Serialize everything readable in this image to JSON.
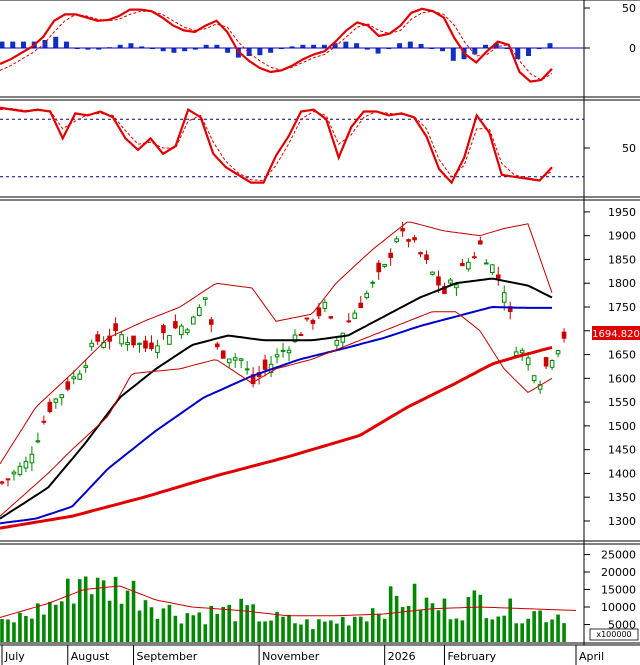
{
  "chart_data": [
    {
      "type": "line",
      "panel": "macd",
      "ylim": [
        -60,
        60
      ],
      "y_ticks": [
        "50",
        "0"
      ],
      "y_tick_values": [
        50,
        0
      ],
      "series": [
        {
          "role": "macd-line",
          "color": "#e00000",
          "values": [
            -20,
            -14,
            -6,
            2,
            14,
            34,
            42,
            42,
            38,
            34,
            35,
            40,
            48,
            48,
            46,
            38,
            28,
            22,
            20,
            28,
            34,
            20,
            -4,
            -16,
            -25,
            -30,
            -28,
            -22,
            -14,
            -8,
            -4,
            8,
            22,
            32,
            28,
            15,
            18,
            28,
            44,
            49,
            46,
            38,
            12,
            -8,
            -18,
            -4,
            8,
            4,
            -30,
            -42,
            -40,
            -26
          ]
        },
        {
          "role": "signal-line",
          "color": "#e00000",
          "values": [
            -28,
            -22,
            -14,
            -6,
            4,
            20,
            34,
            42,
            40,
            36,
            34,
            36,
            42,
            46,
            46,
            42,
            34,
            26,
            22,
            24,
            30,
            26,
            8,
            -6,
            -16,
            -24,
            -28,
            -24,
            -18,
            -12,
            -8,
            2,
            14,
            26,
            30,
            22,
            18,
            22,
            36,
            44,
            46,
            42,
            28,
            6,
            -10,
            -8,
            2,
            4,
            -16,
            -32,
            -40,
            -32
          ]
        },
        {
          "role": "histogram",
          "color": "#1030c0",
          "values": [
            8,
            8,
            8,
            8,
            10,
            14,
            8,
            0,
            -2,
            -2,
            1,
            4,
            6,
            2,
            0,
            -4,
            -6,
            -4,
            -2,
            4,
            4,
            -6,
            -12,
            -10,
            -9,
            -6,
            0,
            2,
            4,
            4,
            4,
            6,
            8,
            6,
            -2,
            -7,
            0,
            6,
            8,
            5,
            0,
            -4,
            -16,
            -14,
            -8,
            4,
            6,
            0,
            -14,
            -10,
            0,
            6
          ]
        }
      ]
    },
    {
      "type": "line",
      "panel": "stochastic",
      "ylim": [
        0,
        100
      ],
      "y_ticks": [
        "50"
      ],
      "y_tick_values": [
        50
      ],
      "reference_levels": [
        80,
        20
      ],
      "series": [
        {
          "role": "%K",
          "color": "#e00000",
          "values": [
            92,
            90,
            88,
            90,
            88,
            60,
            86,
            84,
            88,
            82,
            60,
            48,
            60,
            44,
            52,
            90,
            82,
            44,
            30,
            22,
            14,
            14,
            42,
            62,
            88,
            90,
            80,
            40,
            72,
            88,
            88,
            84,
            86,
            82,
            62,
            28,
            14,
            40,
            84,
            66,
            22,
            20,
            18,
            16,
            30
          ]
        },
        {
          "role": "%D",
          "color": "#e00000",
          "values": [
            90,
            91,
            89,
            89,
            89,
            70,
            78,
            85,
            86,
            84,
            68,
            54,
            56,
            50,
            50,
            78,
            84,
            56,
            36,
            24,
            17,
            16,
            32,
            54,
            80,
            88,
            84,
            54,
            64,
            82,
            88,
            86,
            85,
            83,
            70,
            38,
            20,
            32,
            70,
            70,
            34,
            22,
            19,
            17,
            26
          ]
        }
      ]
    },
    {
      "type": "line",
      "panel": "price",
      "ylim": [
        1260,
        1975
      ],
      "y_ticks": [
        "1950",
        "1900",
        "1850",
        "1800",
        "1750",
        "1700",
        "1650",
        "1600",
        "1550",
        "1500",
        "1450",
        "1400",
        "1350",
        "1300"
      ],
      "y_tick_values": [
        1950,
        1900,
        1850,
        1800,
        1750,
        1700,
        1650,
        1600,
        1550,
        1500,
        1450,
        1400,
        1350,
        1300
      ],
      "last_price": "1694.820",
      "x_labels": [
        "July",
        "August",
        "September",
        "November",
        "2026",
        "February",
        "April"
      ],
      "x_label_positions": [
        0,
        11,
        22,
        43,
        64,
        74,
        96
      ],
      "n_bars": 96,
      "overlays": [
        {
          "role": "ma-black",
          "color": "#000000",
          "anchors": [
            [
              0,
              1305
            ],
            [
              8,
              1370
            ],
            [
              14,
              1460
            ],
            [
              20,
              1560
            ],
            [
              26,
              1620
            ],
            [
              32,
              1670
            ],
            [
              38,
              1690
            ],
            [
              44,
              1680
            ],
            [
              52,
              1680
            ],
            [
              58,
              1690
            ],
            [
              64,
              1730
            ],
            [
              70,
              1770
            ],
            [
              76,
              1800
            ],
            [
              82,
              1810
            ],
            [
              88,
              1795
            ],
            [
              92,
              1770
            ]
          ]
        },
        {
          "role": "ma-blue",
          "color": "#0000cc",
          "anchors": [
            [
              0,
              1295
            ],
            [
              6,
              1305
            ],
            [
              12,
              1330
            ],
            [
              18,
              1410
            ],
            [
              26,
              1490
            ],
            [
              34,
              1560
            ],
            [
              42,
              1605
            ],
            [
              50,
              1640
            ],
            [
              58,
              1665
            ],
            [
              64,
              1685
            ],
            [
              70,
              1710
            ],
            [
              76,
              1730
            ],
            [
              82,
              1750
            ],
            [
              88,
              1748
            ],
            [
              92,
              1748
            ]
          ]
        },
        {
          "role": "ma-red",
          "color": "#e00000",
          "anchors": [
            [
              0,
              1285
            ],
            [
              12,
              1310
            ],
            [
              24,
              1350
            ],
            [
              36,
              1395
            ],
            [
              48,
              1435
            ],
            [
              60,
              1480
            ],
            [
              68,
              1540
            ],
            [
              76,
              1590
            ],
            [
              82,
              1630
            ],
            [
              86,
              1645
            ],
            [
              92,
              1665
            ]
          ]
        },
        {
          "role": "band-upper",
          "color": "#c00000",
          "anchors": [
            [
              0,
              1420
            ],
            [
              6,
              1540
            ],
            [
              12,
              1610
            ],
            [
              18,
              1685
            ],
            [
              24,
              1720
            ],
            [
              30,
              1750
            ],
            [
              36,
              1800
            ],
            [
              42,
              1790
            ],
            [
              46,
              1720
            ],
            [
              52,
              1735
            ],
            [
              56,
              1800
            ],
            [
              62,
              1870
            ],
            [
              68,
              1930
            ],
            [
              74,
              1910
            ],
            [
              80,
              1900
            ],
            [
              84,
              1915
            ],
            [
              88,
              1925
            ],
            [
              92,
              1780
            ]
          ]
        },
        {
          "role": "band-lower",
          "color": "#c00000",
          "anchors": [
            [
              0,
              1310
            ],
            [
              8,
              1400
            ],
            [
              12,
              1450
            ],
            [
              18,
              1520
            ],
            [
              22,
              1610
            ],
            [
              30,
              1620
            ],
            [
              36,
              1640
            ],
            [
              42,
              1590
            ],
            [
              46,
              1620
            ],
            [
              52,
              1640
            ],
            [
              56,
              1660
            ],
            [
              62,
              1690
            ],
            [
              68,
              1720
            ],
            [
              72,
              1740
            ],
            [
              76,
              1740
            ],
            [
              80,
              1700
            ],
            [
              84,
              1620
            ],
            [
              88,
              1570
            ],
            [
              92,
              1600
            ]
          ]
        }
      ],
      "price_path": [
        [
          0,
          1380
        ],
        [
          4,
          1420
        ],
        [
          8,
          1540
        ],
        [
          12,
          1600
        ],
        [
          16,
          1680
        ],
        [
          20,
          1690
        ],
        [
          24,
          1665
        ],
        [
          28,
          1700
        ],
        [
          32,
          1720
        ],
        [
          34,
          1770
        ],
        [
          36,
          1660
        ],
        [
          40,
          1640
        ],
        [
          42,
          1590
        ],
        [
          46,
          1645
        ],
        [
          50,
          1700
        ],
        [
          54,
          1750
        ],
        [
          56,
          1680
        ],
        [
          60,
          1760
        ],
        [
          64,
          1830
        ],
        [
          66,
          1900
        ],
        [
          68,
          1895
        ],
        [
          70,
          1860
        ],
        [
          72,
          1820
        ],
        [
          74,
          1780
        ],
        [
          76,
          1810
        ],
        [
          80,
          1880
        ],
        [
          84,
          1790
        ],
        [
          86,
          1670
        ],
        [
          88,
          1640
        ],
        [
          90,
          1600
        ],
        [
          92,
          1650
        ],
        [
          94,
          1690
        ],
        [
          96,
          1700
        ]
      ]
    },
    {
      "type": "bar",
      "panel": "volume",
      "ylim": [
        0,
        28000
      ],
      "y_ticks": [
        "25000",
        "20000",
        "15000",
        "10000",
        "5000"
      ],
      "y_tick_values": [
        25000,
        20000,
        15000,
        10000,
        5000
      ],
      "unit_label": "x100000",
      "volume_path": [
        [
          0,
          5000
        ],
        [
          6,
          9000
        ],
        [
          10,
          12000
        ],
        [
          14,
          20000
        ],
        [
          16,
          15000
        ],
        [
          20,
          16000
        ],
        [
          24,
          13000
        ],
        [
          28,
          9000
        ],
        [
          32,
          8000
        ],
        [
          36,
          8500
        ],
        [
          40,
          9000
        ],
        [
          44,
          7000
        ],
        [
          48,
          6000
        ],
        [
          52,
          5000
        ],
        [
          56,
          6000
        ],
        [
          60,
          8000
        ],
        [
          64,
          11000
        ],
        [
          68,
          13000
        ],
        [
          72,
          10000
        ],
        [
          76,
          9500
        ],
        [
          80,
          12000
        ],
        [
          84,
          9000
        ],
        [
          88,
          8500
        ],
        [
          92,
          8000
        ],
        [
          96,
          8000
        ]
      ],
      "volume_ma_anchors": [
        [
          0,
          7000
        ],
        [
          8,
          11000
        ],
        [
          14,
          15000
        ],
        [
          20,
          16000
        ],
        [
          26,
          12000
        ],
        [
          32,
          10000
        ],
        [
          40,
          9000
        ],
        [
          48,
          7500
        ],
        [
          56,
          7500
        ],
        [
          64,
          8000
        ],
        [
          72,
          9500
        ],
        [
          80,
          10000
        ],
        [
          88,
          9500
        ],
        [
          96,
          9000
        ]
      ]
    }
  ]
}
